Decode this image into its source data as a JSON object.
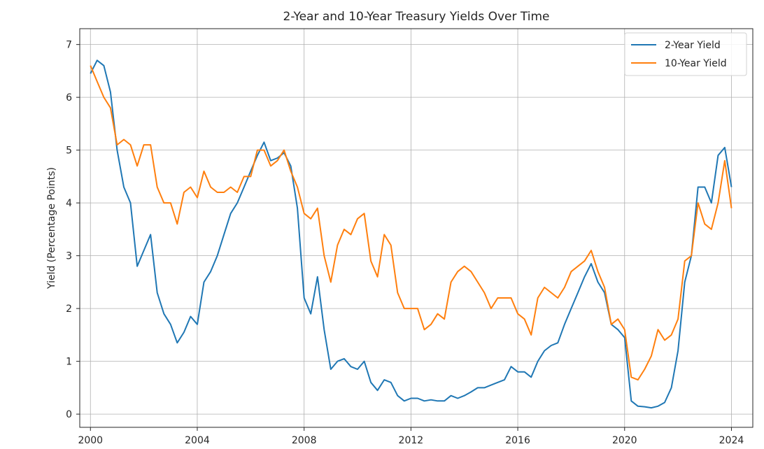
{
  "chart_data": {
    "type": "line",
    "title": "2-Year and 10-Year Treasury Yields Over Time",
    "xlabel": "",
    "ylabel": "Yield (Percentage Points)",
    "x_ticks": [
      "2000",
      "2004",
      "2008",
      "2012",
      "2016",
      "2020",
      "2024"
    ],
    "y_ticks": [
      "0",
      "1",
      "2",
      "3",
      "4",
      "5",
      "6",
      "7"
    ],
    "xlim": [
      1999.6,
      2024.8
    ],
    "ylim": [
      -0.25,
      7.3
    ],
    "grid": true,
    "legend_position": "upper right",
    "x": [
      2000.0,
      2000.25,
      2000.5,
      2000.75,
      2001.0,
      2001.25,
      2001.5,
      2001.75,
      2002.0,
      2002.25,
      2002.5,
      2002.75,
      2003.0,
      2003.25,
      2003.5,
      2003.75,
      2004.0,
      2004.25,
      2004.5,
      2004.75,
      2005.0,
      2005.25,
      2005.5,
      2005.75,
      2006.0,
      2006.25,
      2006.5,
      2006.75,
      2007.0,
      2007.25,
      2007.5,
      2007.75,
      2008.0,
      2008.25,
      2008.5,
      2008.75,
      2009.0,
      2009.25,
      2009.5,
      2009.75,
      2010.0,
      2010.25,
      2010.5,
      2010.75,
      2011.0,
      2011.25,
      2011.5,
      2011.75,
      2012.0,
      2012.25,
      2012.5,
      2012.75,
      2013.0,
      2013.25,
      2013.5,
      2013.75,
      2014.0,
      2014.25,
      2014.5,
      2014.75,
      2015.0,
      2015.25,
      2015.5,
      2015.75,
      2016.0,
      2016.25,
      2016.5,
      2016.75,
      2017.0,
      2017.25,
      2017.5,
      2017.75,
      2018.0,
      2018.25,
      2018.5,
      2018.75,
      2019.0,
      2019.25,
      2019.5,
      2019.75,
      2020.0,
      2020.25,
      2020.5,
      2020.75,
      2021.0,
      2021.25,
      2021.5,
      2021.75,
      2022.0,
      2022.25,
      2022.5,
      2022.75,
      2023.0,
      2023.25,
      2023.5,
      2023.75,
      2024.0
    ],
    "series": [
      {
        "name": "2-Year Yield",
        "color": "#1f77b4",
        "values": [
          6.45,
          6.7,
          6.6,
          6.1,
          5.0,
          4.3,
          4.0,
          2.8,
          3.1,
          3.4,
          2.3,
          1.9,
          1.7,
          1.35,
          1.55,
          1.85,
          1.7,
          2.5,
          2.7,
          3.0,
          3.4,
          3.8,
          4.0,
          4.3,
          4.6,
          4.9,
          5.15,
          4.8,
          4.85,
          4.95,
          4.7,
          3.9,
          2.2,
          1.9,
          2.6,
          1.6,
          0.85,
          1.0,
          1.05,
          0.9,
          0.85,
          1.0,
          0.6,
          0.45,
          0.65,
          0.6,
          0.35,
          0.25,
          0.3,
          0.3,
          0.25,
          0.27,
          0.25,
          0.25,
          0.35,
          0.3,
          0.35,
          0.42,
          0.5,
          0.5,
          0.55,
          0.6,
          0.65,
          0.9,
          0.8,
          0.8,
          0.7,
          1.0,
          1.2,
          1.3,
          1.35,
          1.7,
          2.0,
          2.3,
          2.6,
          2.85,
          2.5,
          2.3,
          1.7,
          1.6,
          1.45,
          0.25,
          0.15,
          0.14,
          0.12,
          0.15,
          0.22,
          0.5,
          1.2,
          2.5,
          3.0,
          4.3,
          4.3,
          4.0,
          4.9,
          5.05,
          4.3
        ]
      },
      {
        "name": "10-Year Yield",
        "color": "#ff7f0e",
        "values": [
          6.6,
          6.3,
          6.0,
          5.8,
          5.1,
          5.2,
          5.1,
          4.7,
          5.1,
          5.1,
          4.3,
          4.0,
          4.0,
          3.6,
          4.2,
          4.3,
          4.1,
          4.6,
          4.3,
          4.2,
          4.2,
          4.3,
          4.2,
          4.5,
          4.5,
          5.0,
          5.0,
          4.7,
          4.8,
          5.0,
          4.6,
          4.3,
          3.8,
          3.7,
          3.9,
          3.0,
          2.5,
          3.2,
          3.5,
          3.4,
          3.7,
          3.8,
          2.9,
          2.6,
          3.4,
          3.2,
          2.3,
          2.0,
          2.0,
          2.0,
          1.6,
          1.7,
          1.9,
          1.8,
          2.5,
          2.7,
          2.8,
          2.7,
          2.5,
          2.3,
          2.0,
          2.2,
          2.2,
          2.2,
          1.9,
          1.8,
          1.5,
          2.2,
          2.4,
          2.3,
          2.2,
          2.4,
          2.7,
          2.8,
          2.9,
          3.1,
          2.7,
          2.4,
          1.7,
          1.8,
          1.6,
          0.7,
          0.65,
          0.85,
          1.1,
          1.6,
          1.4,
          1.5,
          1.8,
          2.9,
          3.0,
          4.0,
          3.6,
          3.5,
          4.0,
          4.8,
          3.9
        ]
      }
    ]
  }
}
